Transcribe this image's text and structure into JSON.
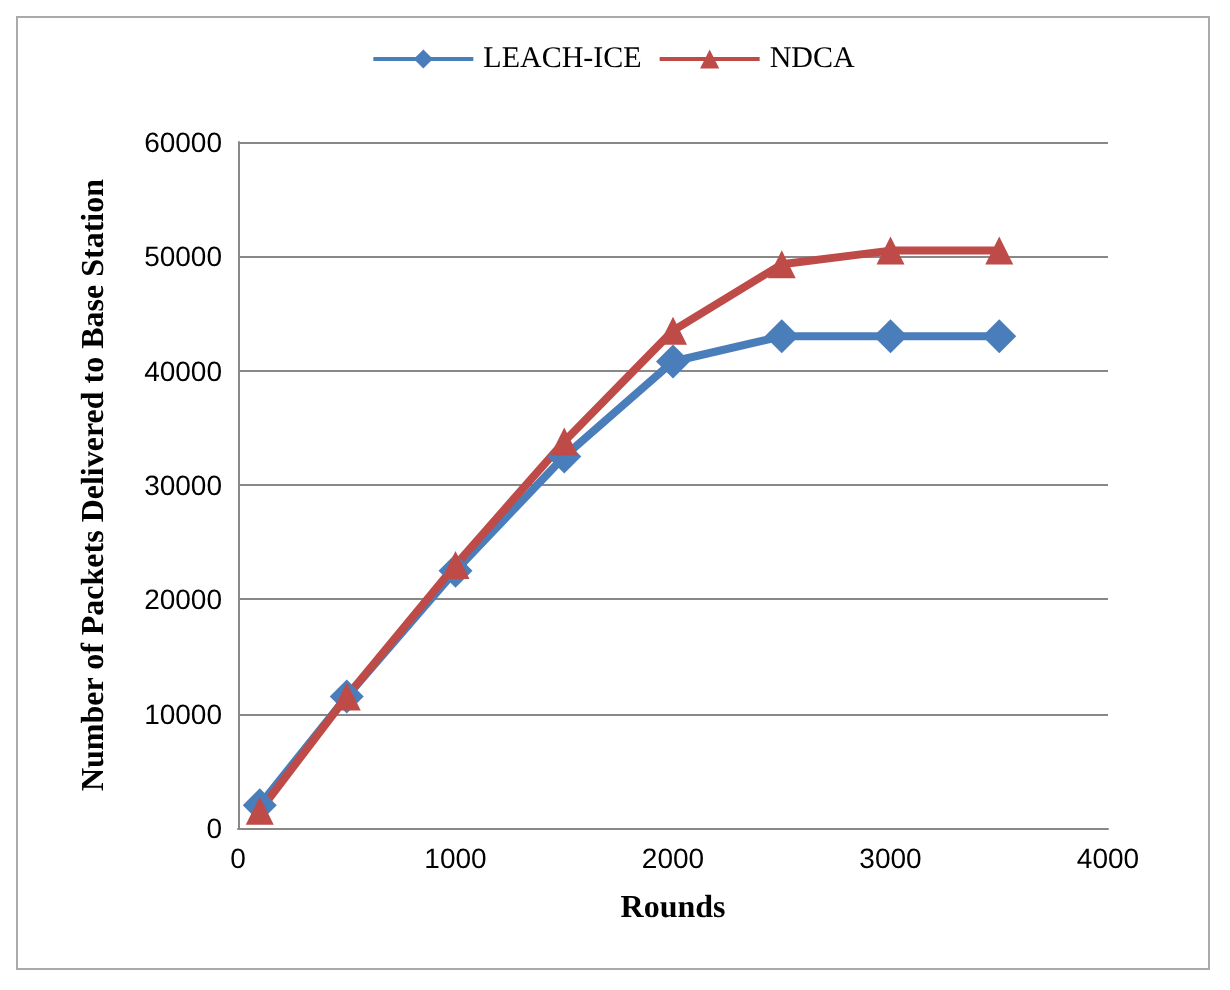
{
  "chart_data": {
    "type": "line",
    "xlabel": "Rounds",
    "ylabel": "Number of Packets Delivered to Base Station",
    "x": [
      100,
      500,
      1000,
      1500,
      2000,
      2500,
      3000,
      3500
    ],
    "series": [
      {
        "name": "LEACH-ICE",
        "color": "#4a7ebb",
        "marker": "diamond",
        "values": [
          2000,
          11500,
          22500,
          32500,
          40800,
          43000,
          43000,
          43000
        ]
      },
      {
        "name": "NDCA",
        "color": "#be4b48",
        "marker": "triangle",
        "values": [
          1500,
          11500,
          23000,
          33800,
          43500,
          49300,
          50500,
          50500
        ]
      }
    ],
    "xlim": [
      0,
      4000
    ],
    "xticks": [
      0,
      1000,
      2000,
      3000,
      4000
    ],
    "ylim": [
      0,
      60000
    ],
    "yticks": [
      0,
      10000,
      20000,
      30000,
      40000,
      50000,
      60000
    ],
    "grid": "y",
    "legend": "top",
    "line_style": "solid"
  }
}
